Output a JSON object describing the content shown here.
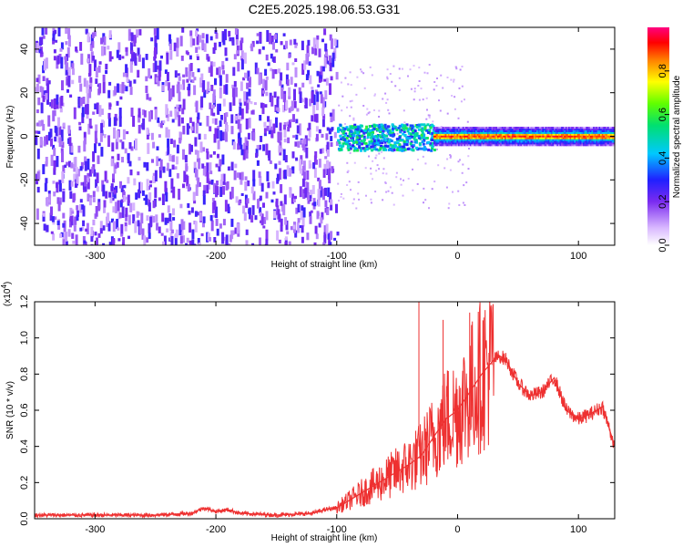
{
  "figure_title": "C2E5.2025.198.06.53.G31",
  "chart_data": [
    {
      "type": "heatmap",
      "title": "C2E5.2025.198.06.53.G31",
      "xlabel": "Height of straight line (km)",
      "ylabel": "Frequency (Hz)",
      "xlim": [
        -350,
        130
      ],
      "ylim": [
        -50,
        50
      ],
      "x_ticks": [
        -300,
        -200,
        -100,
        0,
        100
      ],
      "y_ticks": [
        -40,
        -20,
        0,
        20,
        40
      ],
      "x_tick_labels": [
        "-300",
        "-200",
        "-100",
        "0",
        "100"
      ],
      "y_tick_labels": [
        "-40",
        "-20",
        "0",
        "20",
        "40"
      ],
      "colorbar": {
        "label": "Normalized spectral amplitude",
        "range": [
          0,
          1
        ],
        "ticks": [
          0.0,
          0.2,
          0.4,
          0.6,
          0.8
        ],
        "tick_labels": [
          "0.0",
          "0.2",
          "0.4",
          "0.6",
          "0.8"
        ],
        "colormap": "rainbow (white-violet-blue-cyan-green-yellow-red-magenta)"
      },
      "regions": [
        {
          "x_range": [
            -350,
            -100
          ],
          "freq_range": [
            -50,
            50
          ],
          "amplitude": "low (0.1–0.3), broadband noise"
        },
        {
          "x_range": [
            -100,
            -20
          ],
          "freq_range": [
            -5,
            5
          ],
          "amplitude": "medium (0.3–0.6)"
        },
        {
          "x_range": [
            -20,
            130
          ],
          "freq_range": [
            -3,
            3
          ],
          "amplitude": "high (0.6–1.0), peaks near 0 Hz"
        }
      ],
      "grid": false
    },
    {
      "type": "line",
      "xlabel": "Height of straight line (km)",
      "ylabel": "SNR (10 * v/v)",
      "y_multiplier": "(x10",
      "y_multiplier_exp": "4",
      "y_multiplier_close": ")",
      "xlim": [
        -350,
        130
      ],
      "ylim": [
        0,
        1.2
      ],
      "x_ticks": [
        -300,
        -200,
        -100,
        0,
        100
      ],
      "y_ticks": [
        0.0,
        0.2,
        0.4,
        0.6,
        0.8,
        1.0,
        1.2
      ],
      "x_tick_labels": [
        "-300",
        "-200",
        "-100",
        "0",
        "100"
      ],
      "y_tick_labels": [
        "0.0",
        "0.2",
        "0.4",
        "0.6",
        "0.8",
        "1.0",
        "1.2"
      ],
      "color": "#ee3030",
      "series": [
        {
          "x": [
            -350,
            -300,
            -250,
            -220,
            -210,
            -200,
            -190,
            -180,
            -150,
            -120,
            -110,
            -100,
            -90,
            -80,
            -70,
            -60,
            -50,
            -40,
            -30,
            -20,
            -10,
            0,
            10,
            20,
            30,
            35,
            40,
            50,
            60,
            70,
            80,
            90,
            100,
            110,
            120,
            130
          ],
          "y": [
            0.02,
            0.02,
            0.02,
            0.03,
            0.06,
            0.04,
            0.05,
            0.03,
            0.02,
            0.03,
            0.05,
            0.06,
            0.1,
            0.14,
            0.18,
            0.22,
            0.26,
            0.3,
            0.35,
            0.45,
            0.55,
            0.6,
            0.7,
            0.8,
            0.88,
            0.9,
            0.88,
            0.75,
            0.68,
            0.7,
            0.78,
            0.6,
            0.55,
            0.58,
            0.62,
            0.4
          ]
        }
      ],
      "spikes": [
        {
          "x": -32,
          "y": 1.22
        },
        {
          "x": -12,
          "y": 1.1
        },
        {
          "x": 10,
          "y": 1.14
        }
      ],
      "grid": false
    }
  ]
}
